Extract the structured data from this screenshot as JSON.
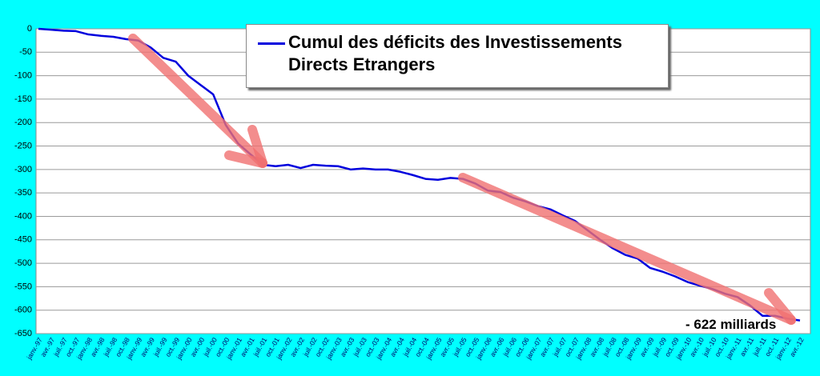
{
  "chart_data": {
    "type": "line",
    "categories": [
      "janv.-97",
      "avr.-97",
      "juil.-97",
      "oct.-97",
      "janv.-98",
      "avr.-98",
      "juil.-98",
      "oct.-98",
      "janv.-99",
      "avr.-99",
      "juil.-99",
      "oct.-99",
      "janv.-00",
      "avr.-00",
      "juil.-00",
      "oct.-00",
      "janv.-01",
      "avr.-01",
      "juil.-01",
      "oct.-01",
      "janv.-02",
      "avr.-02",
      "juil.-02",
      "oct.-02",
      "janv.-03",
      "avr.-03",
      "juil.-03",
      "oct.-03",
      "janv.-04",
      "avr.-04",
      "juil.-04",
      "oct.-04",
      "janv.-05",
      "avr.-05",
      "juil.-05",
      "oct.-05",
      "janv.-06",
      "avr.-06",
      "juil.-06",
      "oct.-06",
      "janv.-07",
      "avr.-07",
      "juil.-07",
      "oct.-07",
      "janv.-08",
      "avr.-08",
      "juil.-08",
      "oct.-08",
      "janv.-09",
      "avr.-09",
      "juil.-09",
      "oct.-09",
      "janv.-10",
      "avr.-10",
      "juil.-10",
      "oct.-10",
      "janv.-11",
      "avr.-11",
      "juil.-11",
      "oct.-11",
      "janv.-12",
      "avr.-12"
    ],
    "series": [
      {
        "name": "Cumul des déficits des Investissements Directs Etrangers",
        "color": "#0000dd",
        "values": [
          0,
          -2,
          -4,
          -5,
          -12,
          -15,
          -17,
          -22,
          -25,
          -40,
          -62,
          -70,
          -100,
          -120,
          -140,
          -205,
          -245,
          -268,
          -290,
          -293,
          -290,
          -297,
          -290,
          -292,
          -293,
          -300,
          -298,
          -300,
          -300,
          -305,
          -312,
          -320,
          -322,
          -318,
          -320,
          -330,
          -345,
          -348,
          -360,
          -368,
          -378,
          -385,
          -398,
          -410,
          -430,
          -450,
          -468,
          -482,
          -490,
          -510,
          -518,
          -528,
          -540,
          -548,
          -555,
          -565,
          -572,
          -590,
          -612,
          -612,
          -618,
          -622
        ]
      }
    ],
    "ylim": [
      -650,
      0
    ],
    "yticks": [
      0,
      -50,
      -100,
      -150,
      -200,
      -250,
      -300,
      -350,
      -400,
      -450,
      -500,
      -550,
      -600,
      -650
    ],
    "grid": true,
    "annotation": "- 622 milliards"
  }
}
